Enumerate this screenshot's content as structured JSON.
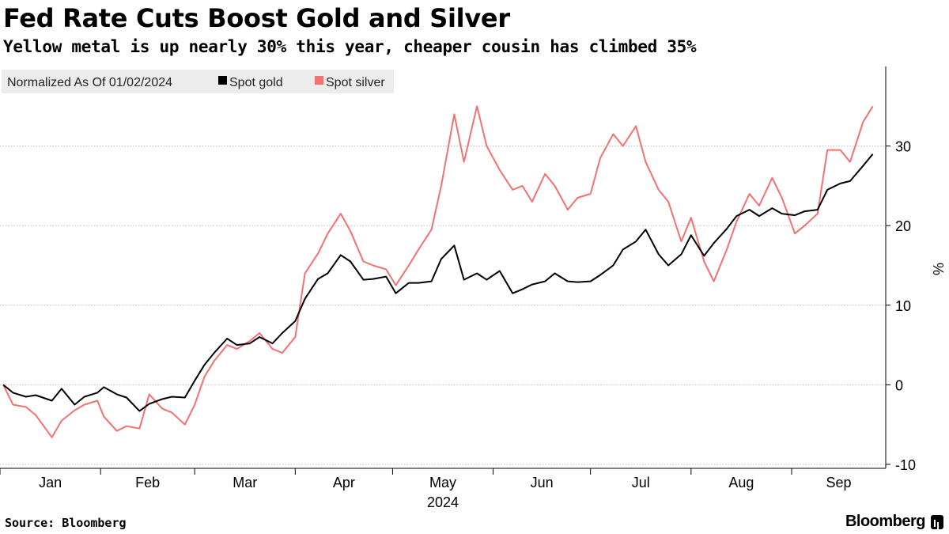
{
  "title": "Fed Rate Cuts Boost Gold and Silver",
  "subtitle": "Yellow metal is up nearly 30% this year, cheaper cousin has climbed 35%",
  "source": "Source: Bloomberg",
  "brand": "Bloomberg",
  "chart_data": {
    "type": "line",
    "legend_note": "Normalized As Of 01/02/2024",
    "legend_position": "top-left",
    "ylabel": "%",
    "ylim": [
      -10.5,
      40
    ],
    "yticks": [
      -10,
      0,
      10,
      20,
      30
    ],
    "grid": true,
    "xlim": [
      "2024-01-01",
      "2024-09-30"
    ],
    "x_month_labels": [
      "Jan",
      "Feb",
      "Mar",
      "Apr",
      "May",
      "Jun",
      "Jul",
      "Aug",
      "Sep"
    ],
    "x_year_label": "2024",
    "series": [
      {
        "name": "Spot gold",
        "color": "#000000",
        "points": [
          [
            "2024-01-02",
            0.0
          ],
          [
            "2024-01-05",
            -1.0
          ],
          [
            "2024-01-09",
            -1.5
          ],
          [
            "2024-01-12",
            -1.3
          ],
          [
            "2024-01-17",
            -2.0
          ],
          [
            "2024-01-20",
            -0.5
          ],
          [
            "2024-01-24",
            -2.5
          ],
          [
            "2024-01-27",
            -1.5
          ],
          [
            "2024-01-31",
            -1.0
          ],
          [
            "2024-02-02",
            -0.3
          ],
          [
            "2024-02-06",
            -1.2
          ],
          [
            "2024-02-09",
            -1.6
          ],
          [
            "2024-02-13",
            -3.3
          ],
          [
            "2024-02-16",
            -2.4
          ],
          [
            "2024-02-20",
            -1.8
          ],
          [
            "2024-02-23",
            -1.5
          ],
          [
            "2024-02-27",
            -1.6
          ],
          [
            "2024-03-01",
            0.5
          ],
          [
            "2024-03-04",
            2.5
          ],
          [
            "2024-03-07",
            4.0
          ],
          [
            "2024-03-11",
            5.8
          ],
          [
            "2024-03-14",
            5.0
          ],
          [
            "2024-03-18",
            5.2
          ],
          [
            "2024-03-21",
            6.0
          ],
          [
            "2024-03-25",
            5.2
          ],
          [
            "2024-03-28",
            6.5
          ],
          [
            "2024-04-01",
            8.0
          ],
          [
            "2024-04-04",
            10.8
          ],
          [
            "2024-04-08",
            13.3
          ],
          [
            "2024-04-11",
            14.0
          ],
          [
            "2024-04-15",
            16.3
          ],
          [
            "2024-04-18",
            15.5
          ],
          [
            "2024-04-22",
            13.2
          ],
          [
            "2024-04-25",
            13.3
          ],
          [
            "2024-04-29",
            13.6
          ],
          [
            "2024-05-02",
            11.5
          ],
          [
            "2024-05-06",
            12.8
          ],
          [
            "2024-05-09",
            12.8
          ],
          [
            "2024-05-13",
            13.0
          ],
          [
            "2024-05-16",
            15.8
          ],
          [
            "2024-05-20",
            17.5
          ],
          [
            "2024-05-23",
            13.2
          ],
          [
            "2024-05-27",
            14.0
          ],
          [
            "2024-05-30",
            13.2
          ],
          [
            "2024-06-03",
            14.3
          ],
          [
            "2024-06-07",
            11.5
          ],
          [
            "2024-06-10",
            12.0
          ],
          [
            "2024-06-13",
            12.6
          ],
          [
            "2024-06-17",
            13.0
          ],
          [
            "2024-06-20",
            14.0
          ],
          [
            "2024-06-24",
            13.0
          ],
          [
            "2024-06-27",
            12.9
          ],
          [
            "2024-07-01",
            13.0
          ],
          [
            "2024-07-04",
            13.8
          ],
          [
            "2024-07-08",
            15.0
          ],
          [
            "2024-07-11",
            17.0
          ],
          [
            "2024-07-15",
            18.0
          ],
          [
            "2024-07-18",
            19.5
          ],
          [
            "2024-07-22",
            16.4
          ],
          [
            "2024-07-25",
            15.0
          ],
          [
            "2024-07-29",
            16.4
          ],
          [
            "2024-08-01",
            18.8
          ],
          [
            "2024-08-05",
            16.2
          ],
          [
            "2024-08-08",
            17.8
          ],
          [
            "2024-08-12",
            19.6
          ],
          [
            "2024-08-15",
            21.2
          ],
          [
            "2024-08-19",
            22.0
          ],
          [
            "2024-08-22",
            21.2
          ],
          [
            "2024-08-26",
            22.2
          ],
          [
            "2024-08-29",
            21.5
          ],
          [
            "2024-09-02",
            21.3
          ],
          [
            "2024-09-05",
            21.8
          ],
          [
            "2024-09-09",
            22.0
          ],
          [
            "2024-09-12",
            24.5
          ],
          [
            "2024-09-16",
            25.3
          ],
          [
            "2024-09-19",
            25.6
          ],
          [
            "2024-09-23",
            27.5
          ],
          [
            "2024-09-26",
            29.0
          ]
        ]
      },
      {
        "name": "Spot silver",
        "color": "#f47171",
        "points": [
          [
            "2024-01-02",
            0.0
          ],
          [
            "2024-01-05",
            -2.5
          ],
          [
            "2024-01-09",
            -2.8
          ],
          [
            "2024-01-12",
            -3.8
          ],
          [
            "2024-01-17",
            -6.6
          ],
          [
            "2024-01-20",
            -4.5
          ],
          [
            "2024-01-24",
            -3.2
          ],
          [
            "2024-01-27",
            -2.5
          ],
          [
            "2024-01-31",
            -2.0
          ],
          [
            "2024-02-02",
            -4.0
          ],
          [
            "2024-02-06",
            -5.8
          ],
          [
            "2024-02-09",
            -5.2
          ],
          [
            "2024-02-13",
            -5.5
          ],
          [
            "2024-02-16",
            -1.2
          ],
          [
            "2024-02-20",
            -3.0
          ],
          [
            "2024-02-23",
            -3.5
          ],
          [
            "2024-02-27",
            -5.0
          ],
          [
            "2024-03-01",
            -2.5
          ],
          [
            "2024-03-04",
            1.0
          ],
          [
            "2024-03-07",
            3.0
          ],
          [
            "2024-03-11",
            5.0
          ],
          [
            "2024-03-14",
            4.5
          ],
          [
            "2024-03-18",
            5.5
          ],
          [
            "2024-03-21",
            6.5
          ],
          [
            "2024-03-25",
            4.5
          ],
          [
            "2024-03-28",
            4.0
          ],
          [
            "2024-04-01",
            6.0
          ],
          [
            "2024-04-04",
            14.0
          ],
          [
            "2024-04-08",
            16.5
          ],
          [
            "2024-04-11",
            19.0
          ],
          [
            "2024-04-15",
            21.5
          ],
          [
            "2024-04-18",
            19.3
          ],
          [
            "2024-04-22",
            15.5
          ],
          [
            "2024-04-25",
            15.0
          ],
          [
            "2024-04-29",
            14.5
          ],
          [
            "2024-05-02",
            12.5
          ],
          [
            "2024-05-06",
            15.0
          ],
          [
            "2024-05-09",
            17.0
          ],
          [
            "2024-05-13",
            19.5
          ],
          [
            "2024-05-16",
            25.0
          ],
          [
            "2024-05-20",
            34.0
          ],
          [
            "2024-05-23",
            28.0
          ],
          [
            "2024-05-27",
            35.0
          ],
          [
            "2024-05-30",
            30.0
          ],
          [
            "2024-06-03",
            27.0
          ],
          [
            "2024-06-07",
            24.5
          ],
          [
            "2024-06-10",
            25.0
          ],
          [
            "2024-06-13",
            23.0
          ],
          [
            "2024-06-17",
            26.5
          ],
          [
            "2024-06-20",
            25.0
          ],
          [
            "2024-06-24",
            22.0
          ],
          [
            "2024-06-27",
            23.5
          ],
          [
            "2024-07-01",
            24.0
          ],
          [
            "2024-07-04",
            28.5
          ],
          [
            "2024-07-08",
            31.5
          ],
          [
            "2024-07-11",
            30.0
          ],
          [
            "2024-07-15",
            32.5
          ],
          [
            "2024-07-18",
            28.0
          ],
          [
            "2024-07-22",
            24.5
          ],
          [
            "2024-07-25",
            23.0
          ],
          [
            "2024-07-29",
            18.0
          ],
          [
            "2024-08-01",
            21.0
          ],
          [
            "2024-08-05",
            15.5
          ],
          [
            "2024-08-08",
            13.0
          ],
          [
            "2024-08-12",
            17.0
          ],
          [
            "2024-08-15",
            20.5
          ],
          [
            "2024-08-19",
            24.0
          ],
          [
            "2024-08-22",
            22.5
          ],
          [
            "2024-08-26",
            26.0
          ],
          [
            "2024-08-29",
            23.5
          ],
          [
            "2024-09-02",
            19.0
          ],
          [
            "2024-09-05",
            20.0
          ],
          [
            "2024-09-09",
            21.5
          ],
          [
            "2024-09-12",
            29.5
          ],
          [
            "2024-09-16",
            29.5
          ],
          [
            "2024-09-19",
            28.0
          ],
          [
            "2024-09-23",
            33.0
          ],
          [
            "2024-09-26",
            35.0
          ]
        ]
      }
    ]
  }
}
